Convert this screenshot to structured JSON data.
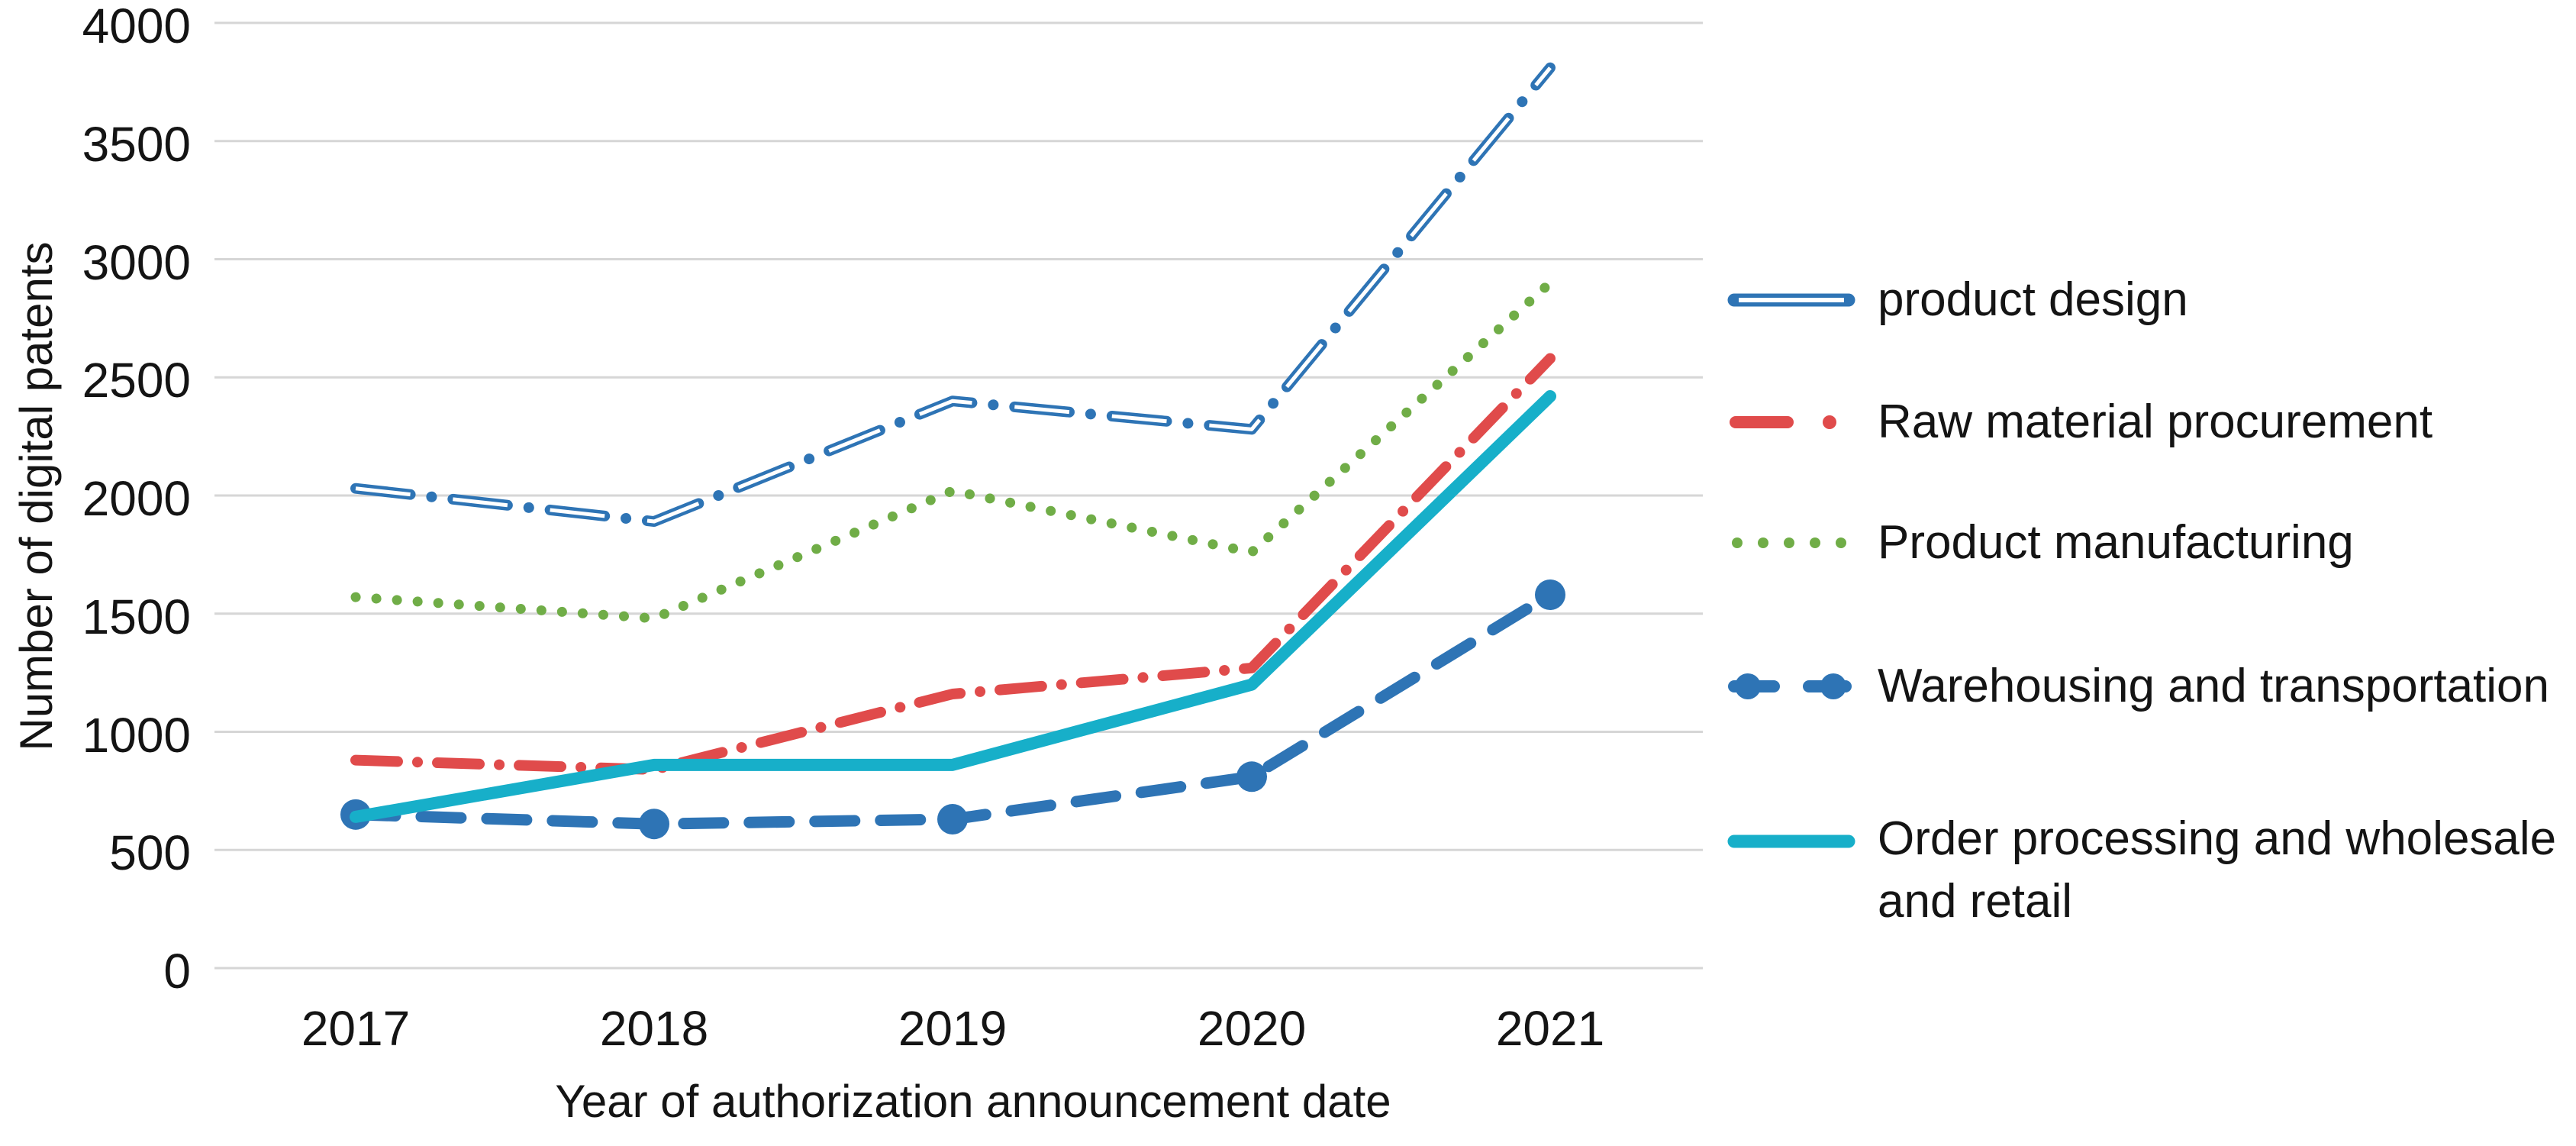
{
  "chart_data": {
    "type": "line",
    "title": "",
    "xlabel": "Year of authorization announcement date",
    "ylabel": "Number of digital patents",
    "x": [
      "2017",
      "2018",
      "2019",
      "2020",
      "2021"
    ],
    "ylim": [
      0,
      4000
    ],
    "yticks": [
      "0",
      "500",
      "1000",
      "1500",
      "2000",
      "2500",
      "3000",
      "3500",
      "4000"
    ],
    "ytick_values": [
      0,
      500,
      1000,
      1500,
      2000,
      2500,
      3000,
      3500,
      4000
    ],
    "grid": "horizontal",
    "legend_position": "right",
    "gridline_color": "#D6D6D6",
    "series": [
      {
        "name": "product design",
        "color": "#2E74B5",
        "style": "hollow-dash-dot",
        "values": [
          2030,
          1890,
          2400,
          2280,
          3810
        ]
      },
      {
        "name": "Raw material procurement",
        "color": "#E04B4B",
        "style": "dash-dot",
        "values": [
          880,
          840,
          1160,
          1270,
          2580
        ]
      },
      {
        "name": "Product manufacturing",
        "color": "#70AD47",
        "style": "dotted",
        "values": [
          1570,
          1480,
          2020,
          1760,
          2900
        ]
      },
      {
        "name": "Warehousing and transportation",
        "color": "#2E74B5",
        "style": "dashed-marker",
        "values": [
          650,
          610,
          630,
          810,
          1580
        ]
      },
      {
        "name": "Order processing and wholesale and retail",
        "color": "#17AFC9",
        "style": "solid",
        "values": [
          640,
          860,
          860,
          1200,
          2420
        ]
      }
    ]
  }
}
